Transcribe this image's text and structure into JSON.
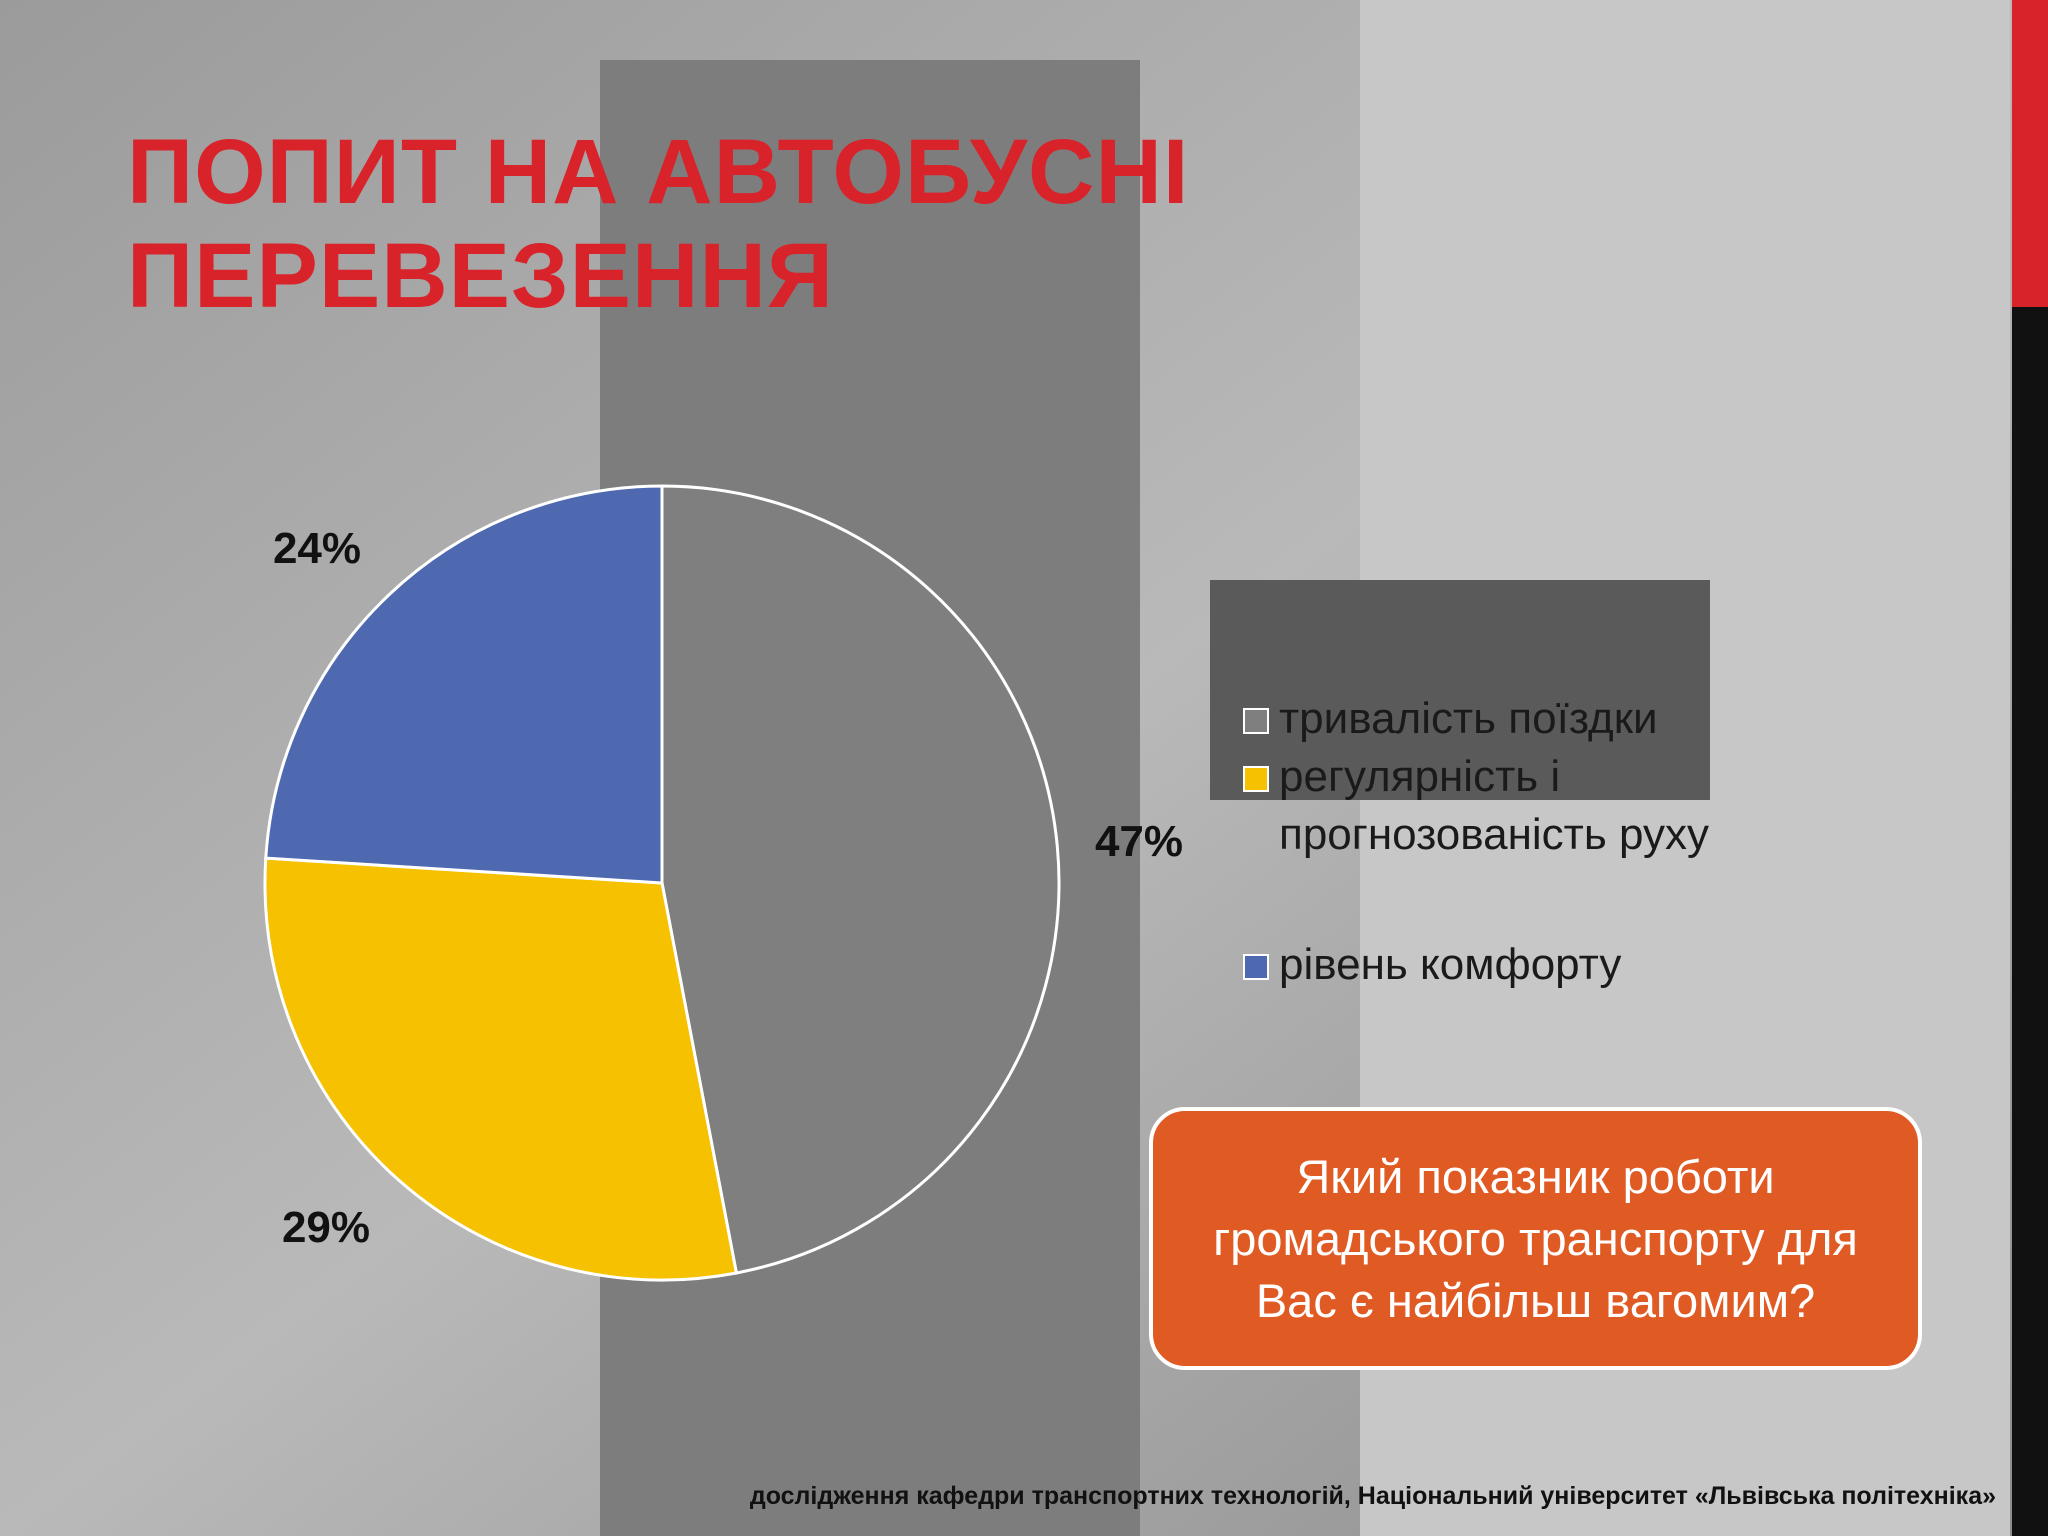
{
  "chart_data": {
    "type": "pie",
    "title": "ПОПИТ НА АВТОБУСНІ ПЕРЕВЕЗЕННЯ",
    "categories": [
      "тривалість поїздки",
      "регулярність і прогнозованість руху",
      "рівень комфорту"
    ],
    "values": [
      47,
      29,
      24
    ],
    "value_labels": [
      "47%",
      "29%",
      "24%"
    ],
    "colors": [
      "#7f7f7f",
      "#f5c100",
      "#4f69b1"
    ]
  },
  "question": "Який показник роботи громадського транспорту для Вас є найбільш вагомим?",
  "source": "дослідження кафедри транспортних технологій, Національний університет «Львівська політехніка»"
}
